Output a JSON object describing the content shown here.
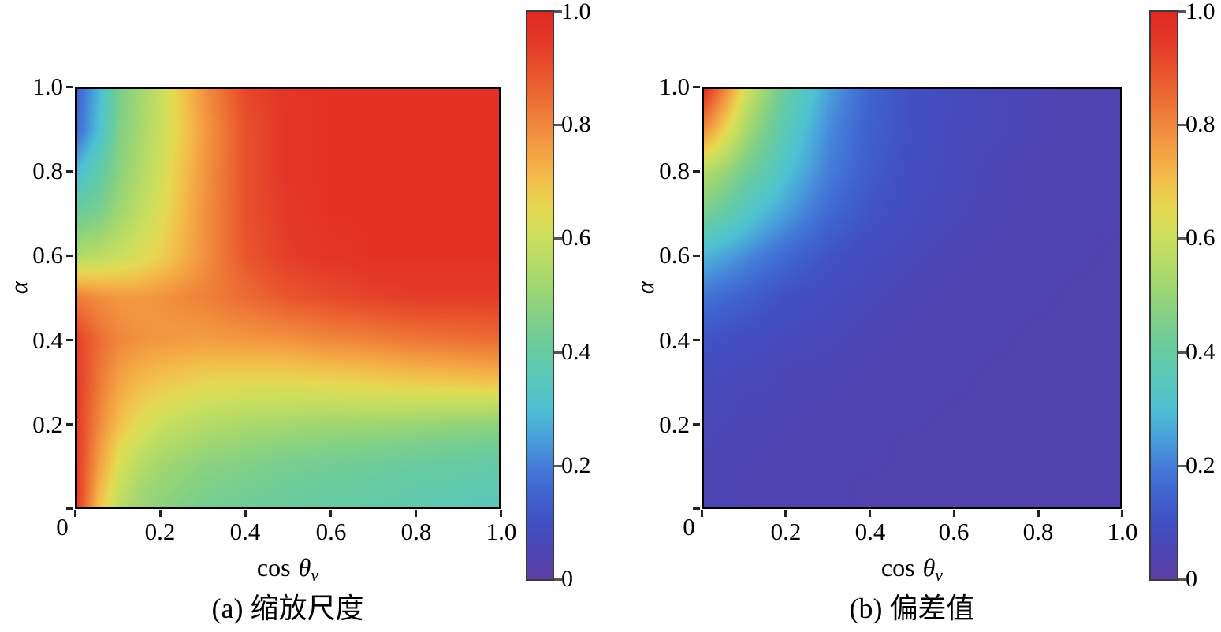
{
  "page": {
    "background": "#ffffff"
  },
  "colormap": {
    "name": "rainbow",
    "stops": [
      [
        0.0,
        "#5d3fa4"
      ],
      [
        0.05,
        "#4c45b4"
      ],
      [
        0.1,
        "#4150c3"
      ],
      [
        0.15,
        "#3f63cf"
      ],
      [
        0.2,
        "#447dd8"
      ],
      [
        0.25,
        "#49a2da"
      ],
      [
        0.3,
        "#4fc1d3"
      ],
      [
        0.35,
        "#59c8bb"
      ],
      [
        0.4,
        "#66cba2"
      ],
      [
        0.45,
        "#7ccf8c"
      ],
      [
        0.5,
        "#97d577"
      ],
      [
        0.55,
        "#b2da68"
      ],
      [
        0.6,
        "#cadf5e"
      ],
      [
        0.65,
        "#e5da52"
      ],
      [
        0.7,
        "#f2c04b"
      ],
      [
        0.75,
        "#f4a443"
      ],
      [
        0.8,
        "#f0873c"
      ],
      [
        0.85,
        "#ed6c33"
      ],
      [
        0.9,
        "#e8512c"
      ],
      [
        0.95,
        "#e33927"
      ],
      [
        1.0,
        "#e22823"
      ]
    ]
  },
  "chart_data": [
    {
      "type": "heatmap",
      "panel": "a",
      "caption": "(a) 缩放尺度",
      "xlabel": {
        "prefix": "cos",
        "symbol": "θ",
        "subscript": "v"
      },
      "ylabel": "α",
      "origin_label": "0",
      "x_tick_labels": [
        "0.2",
        "0.4",
        "0.6",
        "0.8",
        "1.0"
      ],
      "y_tick_labels": [
        "1.0",
        "0.8",
        "0.6",
        "0.4",
        "0.2"
      ],
      "x_range": [
        0,
        1
      ],
      "y_range": [
        0,
        1
      ],
      "value_range": [
        0,
        1
      ],
      "colorbar_tick_labels": [
        "1.0",
        "0.8",
        "0.6",
        "0.4",
        "0.2",
        "0"
      ],
      "grid_x": [
        0,
        0.05,
        0.1,
        0.15,
        0.2,
        0.3,
        0.4,
        0.5,
        0.6,
        0.7,
        0.8,
        0.9,
        1.0
      ],
      "grid_alpha": [
        0,
        0.05,
        0.1,
        0.15,
        0.2,
        0.3,
        0.4,
        0.5,
        0.6,
        0.7,
        0.8,
        0.9,
        1.0
      ],
      "values_by_alpha_row": [
        [
          0.94,
          0.7,
          0.57,
          0.51,
          0.48,
          0.44,
          0.42,
          0.41,
          0.4,
          0.39,
          0.38,
          0.36,
          0.35
        ],
        [
          0.94,
          0.73,
          0.6,
          0.53,
          0.5,
          0.46,
          0.44,
          0.42,
          0.41,
          0.4,
          0.39,
          0.38,
          0.37
        ],
        [
          0.94,
          0.76,
          0.63,
          0.56,
          0.52,
          0.48,
          0.46,
          0.44,
          0.43,
          0.42,
          0.41,
          0.4,
          0.39
        ],
        [
          0.94,
          0.78,
          0.66,
          0.6,
          0.56,
          0.52,
          0.5,
          0.48,
          0.47,
          0.46,
          0.45,
          0.44,
          0.43
        ],
        [
          0.94,
          0.8,
          0.7,
          0.64,
          0.6,
          0.56,
          0.54,
          0.53,
          0.52,
          0.52,
          0.51,
          0.5,
          0.49
        ],
        [
          0.94,
          0.83,
          0.75,
          0.71,
          0.69,
          0.66,
          0.65,
          0.65,
          0.66,
          0.67,
          0.68,
          0.69,
          0.7
        ],
        [
          0.93,
          0.85,
          0.8,
          0.78,
          0.77,
          0.76,
          0.77,
          0.78,
          0.8,
          0.81,
          0.83,
          0.84,
          0.85
        ],
        [
          0.82,
          0.79,
          0.77,
          0.77,
          0.78,
          0.81,
          0.85,
          0.89,
          0.91,
          0.93,
          0.94,
          0.94,
          0.94
        ],
        [
          0.55,
          0.57,
          0.6,
          0.63,
          0.67,
          0.78,
          0.89,
          0.94,
          0.96,
          0.97,
          0.97,
          0.97,
          0.97
        ],
        [
          0.42,
          0.45,
          0.52,
          0.58,
          0.64,
          0.78,
          0.9,
          0.95,
          0.97,
          0.97,
          0.97,
          0.97,
          0.97
        ],
        [
          0.3,
          0.38,
          0.48,
          0.55,
          0.62,
          0.77,
          0.9,
          0.96,
          0.97,
          0.97,
          0.97,
          0.97,
          0.97
        ],
        [
          0.17,
          0.3,
          0.46,
          0.53,
          0.6,
          0.76,
          0.9,
          0.96,
          0.97,
          0.97,
          0.97,
          0.97,
          0.97
        ],
        [
          0.15,
          0.28,
          0.45,
          0.52,
          0.6,
          0.78,
          0.92,
          0.96,
          0.97,
          0.97,
          0.97,
          0.97,
          0.97
        ]
      ]
    },
    {
      "type": "heatmap",
      "panel": "b",
      "caption": "(b) 偏差值",
      "xlabel": {
        "prefix": "cos",
        "symbol": "θ",
        "subscript": "v"
      },
      "ylabel": "α",
      "origin_label": "0",
      "x_tick_labels": [
        "0.2",
        "0.4",
        "0.6",
        "0.8",
        "1.0"
      ],
      "y_tick_labels": [
        "1.0",
        "0.8",
        "0.6",
        "0.4",
        "0.2"
      ],
      "x_range": [
        0,
        1
      ],
      "y_range": [
        0,
        1
      ],
      "value_range": [
        0,
        1
      ],
      "colorbar_tick_labels": [
        "1.0",
        "0.8",
        "0.6",
        "0.4",
        "0.2",
        "0"
      ],
      "grid_x": [
        0,
        0.05,
        0.1,
        0.15,
        0.2,
        0.3,
        0.4,
        0.5,
        0.6,
        0.7,
        0.8,
        0.9,
        1.0
      ],
      "grid_alpha": [
        0,
        0.05,
        0.1,
        0.15,
        0.2,
        0.3,
        0.4,
        0.5,
        0.6,
        0.7,
        0.8,
        0.9,
        1.0
      ],
      "values_by_alpha_row": [
        [
          0.05,
          0.05,
          0.04,
          0.04,
          0.04,
          0.04,
          0.03,
          0.03,
          0.03,
          0.03,
          0.03,
          0.03,
          0.03
        ],
        [
          0.05,
          0.05,
          0.04,
          0.04,
          0.04,
          0.04,
          0.03,
          0.03,
          0.03,
          0.03,
          0.03,
          0.03,
          0.03
        ],
        [
          0.05,
          0.05,
          0.05,
          0.04,
          0.04,
          0.04,
          0.04,
          0.03,
          0.03,
          0.03,
          0.03,
          0.03,
          0.03
        ],
        [
          0.06,
          0.05,
          0.05,
          0.05,
          0.04,
          0.04,
          0.04,
          0.03,
          0.03,
          0.03,
          0.03,
          0.03,
          0.03
        ],
        [
          0.06,
          0.06,
          0.05,
          0.05,
          0.05,
          0.04,
          0.04,
          0.04,
          0.03,
          0.03,
          0.03,
          0.03,
          0.03
        ],
        [
          0.08,
          0.07,
          0.06,
          0.06,
          0.05,
          0.05,
          0.04,
          0.04,
          0.04,
          0.03,
          0.03,
          0.03,
          0.03
        ],
        [
          0.11,
          0.1,
          0.09,
          0.08,
          0.07,
          0.06,
          0.05,
          0.04,
          0.04,
          0.04,
          0.03,
          0.03,
          0.03
        ],
        [
          0.18,
          0.16,
          0.14,
          0.12,
          0.1,
          0.08,
          0.06,
          0.05,
          0.04,
          0.04,
          0.04,
          0.03,
          0.03
        ],
        [
          0.28,
          0.25,
          0.22,
          0.19,
          0.16,
          0.11,
          0.08,
          0.06,
          0.05,
          0.04,
          0.04,
          0.04,
          0.03
        ],
        [
          0.44,
          0.39,
          0.33,
          0.28,
          0.24,
          0.16,
          0.11,
          0.08,
          0.06,
          0.05,
          0.04,
          0.04,
          0.04
        ],
        [
          0.55,
          0.5,
          0.43,
          0.37,
          0.3,
          0.2,
          0.13,
          0.09,
          0.07,
          0.05,
          0.04,
          0.04,
          0.04
        ],
        [
          0.78,
          0.66,
          0.53,
          0.44,
          0.35,
          0.22,
          0.14,
          0.1,
          0.07,
          0.06,
          0.05,
          0.04,
          0.04
        ],
        [
          0.97,
          0.8,
          0.62,
          0.5,
          0.4,
          0.25,
          0.15,
          0.1,
          0.08,
          0.06,
          0.05,
          0.04,
          0.04
        ]
      ]
    }
  ]
}
